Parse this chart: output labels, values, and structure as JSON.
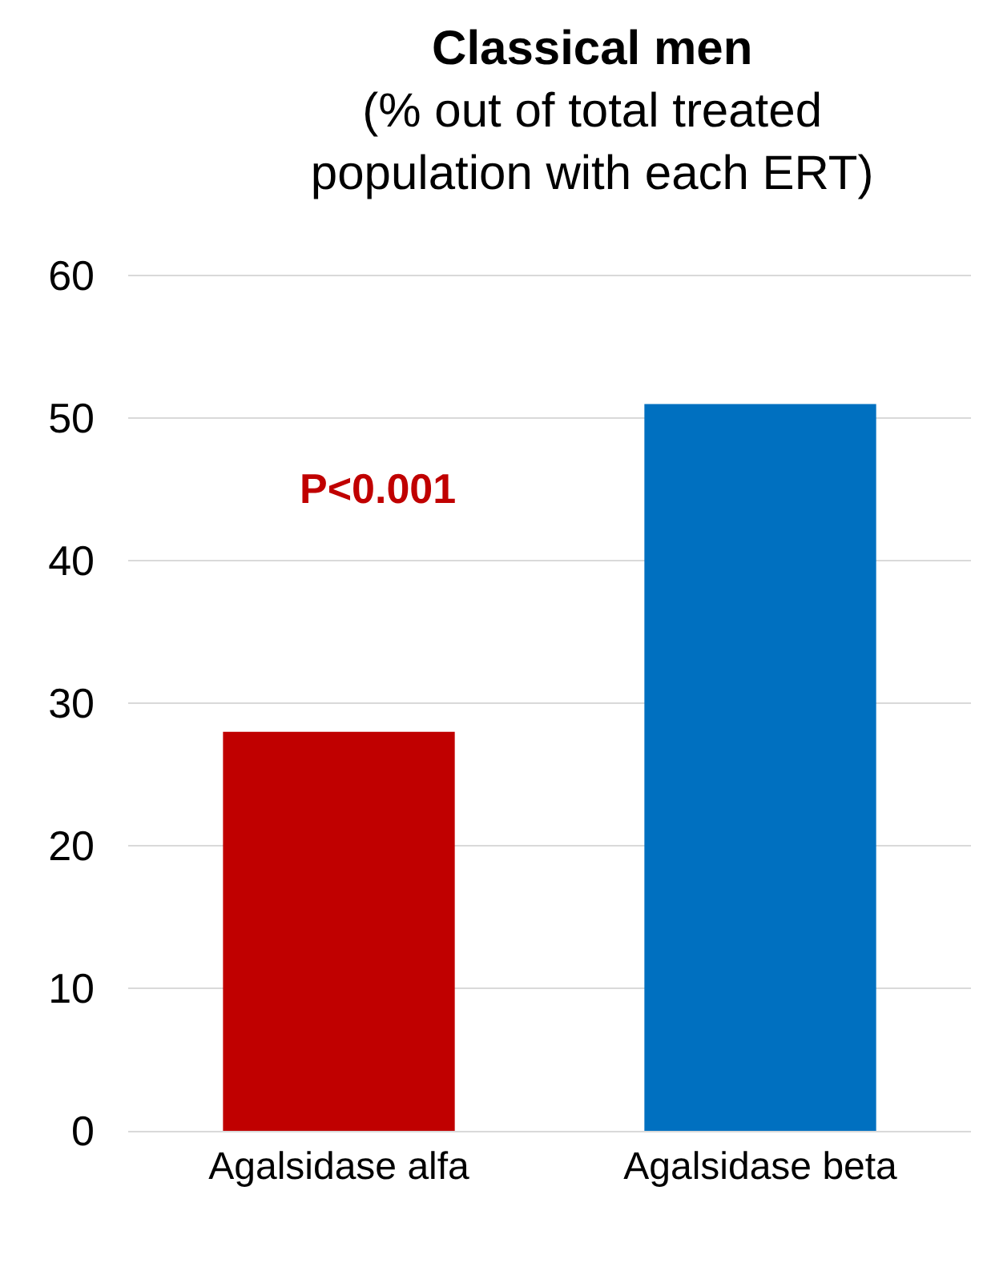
{
  "chart_data": {
    "type": "bar",
    "title": "Classical men",
    "subtitle": "(% out of total treated population with each ERT)",
    "categories": [
      "Agalsidase alfa",
      "Agalsidase beta"
    ],
    "values": [
      28,
      51
    ],
    "colors": [
      "#c00000",
      "#0070c0"
    ],
    "ylim": [
      0,
      60
    ],
    "yticks": [
      0,
      10,
      20,
      30,
      40,
      50,
      60
    ],
    "grid": "y",
    "annotations": [
      "P<0.001"
    ]
  }
}
